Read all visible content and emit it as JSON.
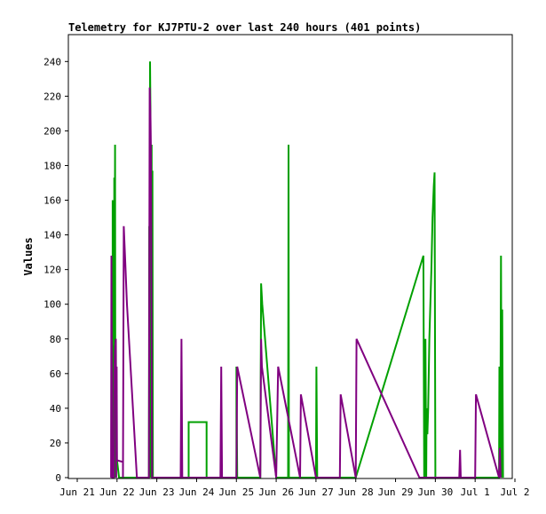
{
  "chart_data": {
    "type": "line",
    "title": "Telemetry for KJ7PTU-2 over last 240 hours (401 points)",
    "xlabel": "",
    "ylabel": "Values",
    "grid": false,
    "legend": "none",
    "xlim": [
      0,
      11
    ],
    "ylim": [
      0,
      255
    ],
    "x_ticks": [
      {
        "x": 0,
        "label": "Jun 21"
      },
      {
        "x": 1,
        "label": "Jun 22"
      },
      {
        "x": 2,
        "label": "Jun 23"
      },
      {
        "x": 3,
        "label": "Jun 24"
      },
      {
        "x": 4,
        "label": "Jun 25"
      },
      {
        "x": 5,
        "label": "Jun 26"
      },
      {
        "x": 6,
        "label": "Jun 27"
      },
      {
        "x": 7,
        "label": "Jun 28"
      },
      {
        "x": 8,
        "label": "Jun 29"
      },
      {
        "x": 9,
        "label": "Jun 30"
      },
      {
        "x": 10,
        "label": "Jul 1"
      },
      {
        "x": 11,
        "label": "Jul 2"
      }
    ],
    "y_ticks": [
      0,
      20,
      40,
      60,
      80,
      100,
      120,
      140,
      160,
      180,
      200,
      220,
      240
    ],
    "series": [
      {
        "color": "#00a000",
        "points": [
          [
            0.89,
            0
          ],
          [
            0.89,
            160
          ],
          [
            0.9,
            20
          ],
          [
            0.92,
            97
          ],
          [
            0.93,
            135
          ],
          [
            0.93,
            173
          ],
          [
            0.94,
            62
          ],
          [
            0.95,
            192
          ],
          [
            0.96,
            0
          ],
          [
            0.97,
            80
          ],
          [
            0.98,
            12
          ],
          [
            1.0,
            10
          ],
          [
            1.05,
            0
          ],
          [
            1.1,
            0
          ],
          [
            1.8,
            0
          ],
          [
            1.81,
            145
          ],
          [
            1.82,
            0
          ],
          [
            1.83,
            240
          ],
          [
            1.84,
            210
          ],
          [
            1.86,
            0
          ],
          [
            1.87,
            192
          ],
          [
            1.88,
            0
          ],
          [
            1.89,
            177
          ],
          [
            1.9,
            0
          ],
          [
            2.8,
            0
          ],
          [
            2.8,
            32
          ],
          [
            3.25,
            32
          ],
          [
            3.25,
            0
          ],
          [
            4.0,
            0
          ],
          [
            4.0,
            64
          ],
          [
            4.02,
            0
          ],
          [
            4.6,
            0
          ],
          [
            4.62,
            112
          ],
          [
            4.65,
            100
          ],
          [
            5.0,
            0
          ],
          [
            5.0,
            0
          ],
          [
            5.3,
            0
          ],
          [
            5.31,
            192
          ],
          [
            5.32,
            0
          ],
          [
            6.0,
            0
          ],
          [
            6.01,
            64
          ],
          [
            6.03,
            0
          ],
          [
            7.0,
            0
          ],
          [
            7.0,
            0
          ],
          [
            8.7,
            128
          ],
          [
            8.72,
            0
          ],
          [
            8.73,
            0
          ],
          [
            8.75,
            80
          ],
          [
            8.77,
            0
          ],
          [
            8.78,
            40
          ],
          [
            8.8,
            25
          ],
          [
            8.82,
            40
          ],
          [
            8.85,
            80
          ],
          [
            8.9,
            120
          ],
          [
            8.93,
            150
          ],
          [
            8.96,
            168
          ],
          [
            8.98,
            176
          ],
          [
            9.0,
            0
          ],
          [
            10.6,
            0
          ],
          [
            10.61,
            64
          ],
          [
            10.63,
            0
          ],
          [
            10.65,
            128
          ],
          [
            10.67,
            0
          ],
          [
            10.68,
            97
          ],
          [
            10.7,
            0
          ]
        ]
      },
      {
        "color": "#800080",
        "points": [
          [
            0.85,
            0
          ],
          [
            0.86,
            128
          ],
          [
            0.88,
            0
          ],
          [
            0.92,
            0
          ],
          [
            0.93,
            60
          ],
          [
            0.95,
            75
          ],
          [
            0.97,
            80
          ],
          [
            0.98,
            0
          ],
          [
            0.99,
            64
          ],
          [
            1.0,
            10
          ],
          [
            1.15,
            9
          ],
          [
            1.15,
            0
          ],
          [
            1.17,
            145
          ],
          [
            1.2,
            128
          ],
          [
            1.25,
            100
          ],
          [
            1.5,
            0
          ],
          [
            1.8,
            0
          ],
          [
            1.82,
            225
          ],
          [
            1.84,
            208
          ],
          [
            1.85,
            192
          ],
          [
            1.86,
            145
          ],
          [
            1.87,
            72
          ],
          [
            1.88,
            0
          ],
          [
            2.6,
            0
          ],
          [
            2.62,
            80
          ],
          [
            2.64,
            0
          ],
          [
            3.6,
            0
          ],
          [
            3.62,
            64
          ],
          [
            3.64,
            0
          ],
          [
            4.0,
            0
          ],
          [
            4.02,
            64
          ],
          [
            4.6,
            0
          ],
          [
            4.62,
            80
          ],
          [
            4.64,
            64
          ],
          [
            5.0,
            0
          ],
          [
            5.0,
            0
          ],
          [
            5.05,
            64
          ],
          [
            5.6,
            0
          ],
          [
            5.6,
            0
          ],
          [
            5.62,
            48
          ],
          [
            6.0,
            0
          ],
          [
            6.0,
            0
          ],
          [
            6.6,
            0
          ],
          [
            6.62,
            48
          ],
          [
            7.0,
            0
          ],
          [
            7.02,
            80
          ],
          [
            8.6,
            0
          ],
          [
            8.62,
            0
          ],
          [
            9.6,
            0
          ],
          [
            9.62,
            16
          ],
          [
            9.64,
            0
          ],
          [
            10.0,
            0
          ],
          [
            10.02,
            48
          ],
          [
            10.6,
            0
          ],
          [
            10.62,
            17
          ],
          [
            10.64,
            0
          ]
        ]
      }
    ]
  }
}
